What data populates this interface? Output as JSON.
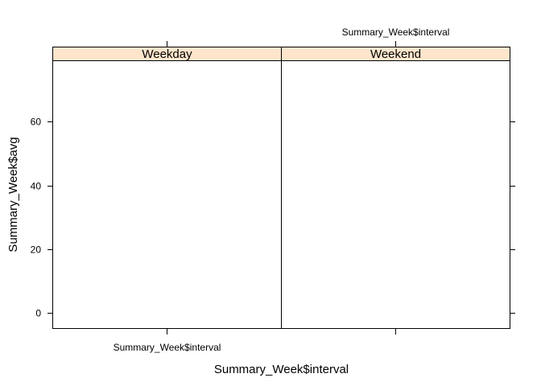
{
  "chart_data": {
    "type": "line",
    "title": "",
    "xlabel": "Summary_Week$interval",
    "ylabel": "Summary_Week$avg",
    "ylim": [
      -5,
      80
    ],
    "y_ticks": [
      0,
      20,
      40,
      60
    ],
    "y_tick_labels": [
      "0",
      "20",
      "40",
      "60"
    ],
    "x_tick_labels": [
      "Summary_Week$interval",
      "Summary_Week$interval"
    ],
    "panels": [
      {
        "name": "Weekday",
        "series": []
      },
      {
        "name": "Weekend",
        "series": []
      }
    ],
    "strip_color": "#ffe5cc",
    "grid": false
  }
}
